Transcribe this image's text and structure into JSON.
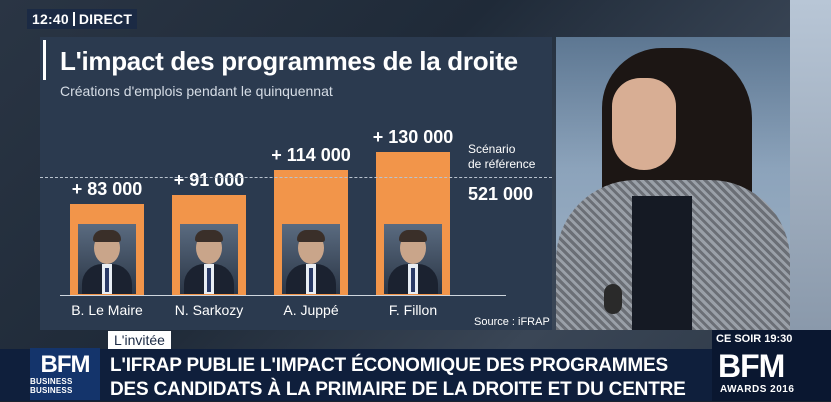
{
  "badge": {
    "time": "12:40",
    "live": "DIRECT"
  },
  "graphic": {
    "title": "L'impact des programmes de la droite",
    "subtitle": "Créations d'emplois pendant le quinquennat",
    "reference": {
      "label_line1": "Scénario",
      "label_line2": "de référence",
      "value": "521 000"
    },
    "source": "Source : iFRAP"
  },
  "chart_data": {
    "type": "bar",
    "title": "L'impact des programmes de la droite",
    "subtitle": "Créations d'emplois pendant le quinquennat",
    "categories": [
      "B. Le Maire",
      "N. Sarkozy",
      "A. Juppé",
      "F. Fillon"
    ],
    "values": [
      83000,
      91000,
      114000,
      130000
    ],
    "value_labels": [
      "+ 83 000",
      "+ 91 000",
      "+ 114 000",
      "+ 130 000"
    ],
    "baseline_value": 521000,
    "baseline_label": "521 000",
    "colors": {
      "bar": "#f2954a"
    }
  },
  "lower_third": {
    "tag": "L'invitée",
    "headline_line1": "L'IFRAP PUBLIE L'IMPACT ÉCONOMIQUE DES PROGRAMMES",
    "headline_line2": "DES CANDIDATS À LA PRIMAIRE DE LA DROITE ET DU CENTRE",
    "logo_main": "BFM",
    "logo_sub": "BUSINESS BUSINESS"
  },
  "promo": {
    "when": "CE SOIR 19:30",
    "brand": "BFM",
    "awards": "AWARDS 2016"
  }
}
